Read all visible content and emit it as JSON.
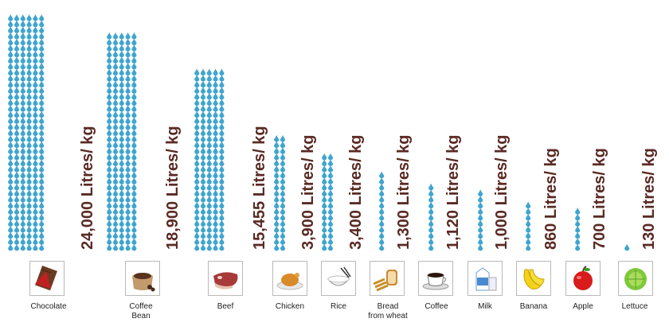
{
  "chart_data": {
    "type": "bar",
    "title": "",
    "categories": [
      [
        "Chocolate"
      ],
      [
        "Coffee",
        "Bean"
      ],
      [
        "Beef"
      ],
      [
        "Chicken"
      ],
      [
        "Rice"
      ],
      [
        "Bread",
        "from wheat"
      ],
      [
        "Coffee"
      ],
      [
        "Milk"
      ],
      [
        "Banana"
      ],
      [
        "Apple"
      ],
      [
        "Lettuce"
      ]
    ],
    "values": [
      24000,
      18900,
      15455,
      3900,
      3400,
      1300,
      1120,
      1000,
      860,
      700,
      130
    ],
    "value_labels": [
      "24,000 Litres/ kg",
      "18,900 Litres/ kg",
      "15,455 Litres/ kg",
      "3,900 Litres/ kg",
      "3,400 Litres/ kg",
      "1,300 Litres/ kg",
      "1,120 Litres/ kg",
      "1,000 Litres/ kg",
      "860 Litres/ kg",
      "700 Litres/ kg",
      "130 Litres/ kg"
    ],
    "icons": [
      "chocolate-icon",
      "coffee-bean-icon",
      "beef-icon",
      "chicken-icon",
      "rice-icon",
      "bread-icon",
      "coffee-cup-icon",
      "milk-icon",
      "banana-icon",
      "apple-icon",
      "lettuce-icon"
    ],
    "mark": "water-drop",
    "colors": {
      "drop": "#3fa5cf",
      "label": "#5a2a24"
    }
  }
}
